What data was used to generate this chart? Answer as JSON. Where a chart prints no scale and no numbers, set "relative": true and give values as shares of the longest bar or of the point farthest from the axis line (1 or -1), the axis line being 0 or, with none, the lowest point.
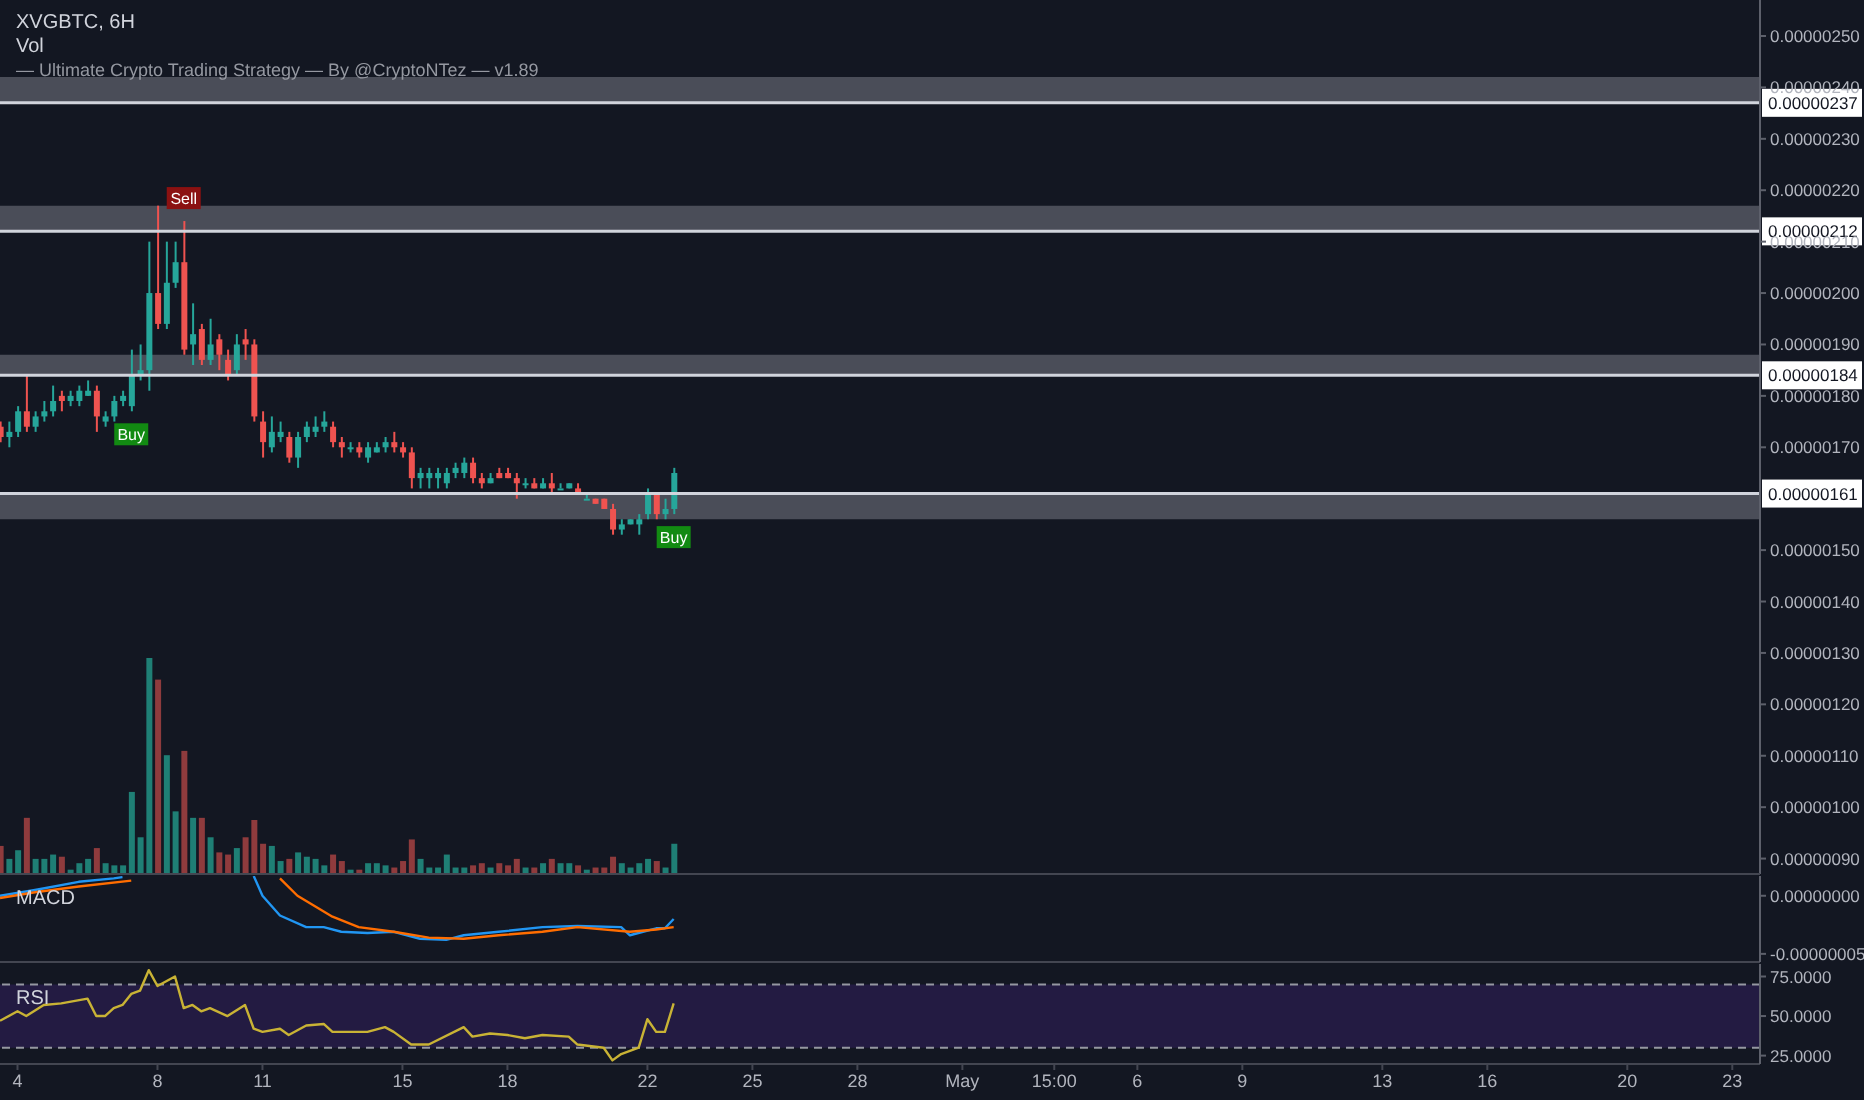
{
  "chart_data": [
    {
      "type": "candlestick",
      "title": "XVGBTC, 6H",
      "subtitle": "— Ultimate Crypto Trading Strategy — By @CryptoNTez — v1.89",
      "x": [
        "--04-03T12:00",
        "--04-03T18:00",
        "--04-04T00:00",
        "--04-04T06:00",
        "--04-04T12:00",
        "--04-04T18:00",
        "--04-05T00:00",
        "--04-05T06:00",
        "--04-05T12:00",
        "--04-05T18:00",
        "--04-06T00:00",
        "--04-06T06:00",
        "--04-06T12:00",
        "--04-06T18:00",
        "--04-07T00:00",
        "--04-07T06:00",
        "--04-07T12:00",
        "--04-07T18:00",
        "--04-08T00:00",
        "--04-08T06:00",
        "--04-08T12:00",
        "--04-08T18:00",
        "--04-09T00:00",
        "--04-09T06:00",
        "--04-09T12:00",
        "--04-09T18:00",
        "--04-10T00:00",
        "--04-10T06:00",
        "--04-10T12:00",
        "--04-10T18:00",
        "--04-11T00:00",
        "--04-11T06:00",
        "--04-11T12:00",
        "--04-11T18:00",
        "--04-12T00:00",
        "--04-12T06:00",
        "--04-12T12:00",
        "--04-12T18:00",
        "--04-13T00:00",
        "--04-13T06:00",
        "--04-13T12:00",
        "--04-13T18:00",
        "--04-14T00:00",
        "--04-14T06:00",
        "--04-14T12:00",
        "--04-14T18:00",
        "--04-15T00:00",
        "--04-15T06:00",
        "--04-15T12:00",
        "--04-15T18:00",
        "--04-16T00:00",
        "--04-16T06:00",
        "--04-16T12:00",
        "--04-16T18:00",
        "--04-17T00:00",
        "--04-17T06:00",
        "--04-17T12:00",
        "--04-17T18:00",
        "--04-18T00:00",
        "--04-18T06:00",
        "--04-18T12:00",
        "--04-18T18:00",
        "--04-19T00:00",
        "--04-19T06:00",
        "--04-19T12:00",
        "--04-19T18:00",
        "--04-20T00:00",
        "--04-20T06:00",
        "--04-20T12:00",
        "--04-20T18:00",
        "--04-21T00:00",
        "--04-21T06:00",
        "--04-21T12:00",
        "--04-21T18:00",
        "--04-22T00:00",
        "--04-22T06:00",
        "--04-22T12:00",
        "--04-22T18:00"
      ],
      "ohlc": [
        [
          1.74e-06,
          1.75e-06,
          1.71e-06,
          1.72e-06
        ],
        [
          1.72e-06,
          1.75e-06,
          1.7e-06,
          1.73e-06
        ],
        [
          1.73e-06,
          1.78e-06,
          1.72e-06,
          1.77e-06
        ],
        [
          1.77e-06,
          1.84e-06,
          1.73e-06,
          1.74e-06
        ],
        [
          1.74e-06,
          1.77e-06,
          1.73e-06,
          1.76e-06
        ],
        [
          1.76e-06,
          1.79e-06,
          1.75e-06,
          1.77e-06
        ],
        [
          1.77e-06,
          1.82e-06,
          1.76e-06,
          1.79e-06
        ],
        [
          1.8e-06,
          1.81e-06,
          1.77e-06,
          1.79e-06
        ],
        [
          1.79e-06,
          1.81e-06,
          1.78e-06,
          1.8e-06
        ],
        [
          1.79e-06,
          1.82e-06,
          1.78e-06,
          1.81e-06
        ],
        [
          1.8e-06,
          1.83e-06,
          1.8e-06,
          1.81e-06
        ],
        [
          1.81e-06,
          1.82e-06,
          1.73e-06,
          1.76e-06
        ],
        [
          1.75e-06,
          1.77e-06,
          1.74e-06,
          1.76e-06
        ],
        [
          1.76e-06,
          1.8e-06,
          1.75e-06,
          1.79e-06
        ],
        [
          1.79e-06,
          1.81e-06,
          1.78e-06,
          1.8e-06
        ],
        [
          1.78e-06,
          1.89e-06,
          1.77e-06,
          1.84e-06
        ],
        [
          1.84e-06,
          1.9e-06,
          1.83e-06,
          1.85e-06
        ],
        [
          1.85e-06,
          2.1e-06,
          1.81e-06,
          2e-06
        ],
        [
          2e-06,
          2.17e-06,
          1.93e-06,
          1.94e-06
        ],
        [
          1.94e-06,
          2.1e-06,
          1.93e-06,
          2.02e-06
        ],
        [
          2.02e-06,
          2.1e-06,
          2.01e-06,
          2.06e-06
        ],
        [
          2.06e-06,
          2.14e-06,
          1.88e-06,
          1.89e-06
        ],
        [
          1.9e-06,
          1.98e-06,
          1.86e-06,
          1.92e-06
        ],
        [
          1.93e-06,
          1.94e-06,
          1.86e-06,
          1.87e-06
        ],
        [
          1.87e-06,
          1.95e-06,
          1.86e-06,
          1.9e-06
        ],
        [
          1.91e-06,
          1.92e-06,
          1.85e-06,
          1.88e-06
        ],
        [
          1.87e-06,
          1.89e-06,
          1.83e-06,
          1.84e-06
        ],
        [
          1.85e-06,
          1.92e-06,
          1.84e-06,
          1.9e-06
        ],
        [
          1.91e-06,
          1.93e-06,
          1.87e-06,
          1.9e-06
        ],
        [
          1.9e-06,
          1.91e-06,
          1.75e-06,
          1.76e-06
        ],
        [
          1.75e-06,
          1.77e-06,
          1.68e-06,
          1.71e-06
        ],
        [
          1.7e-06,
          1.76e-06,
          1.69e-06,
          1.73e-06
        ],
        [
          1.72e-06,
          1.75e-06,
          1.71e-06,
          1.73e-06
        ],
        [
          1.72e-06,
          1.73e-06,
          1.67e-06,
          1.68e-06
        ],
        [
          1.68e-06,
          1.73e-06,
          1.66e-06,
          1.72e-06
        ],
        [
          1.72e-06,
          1.75e-06,
          1.71e-06,
          1.74e-06
        ],
        [
          1.73e-06,
          1.76e-06,
          1.72e-06,
          1.74e-06
        ],
        [
          1.74e-06,
          1.77e-06,
          1.73e-06,
          1.75e-06
        ],
        [
          1.74e-06,
          1.75e-06,
          1.7e-06,
          1.71e-06
        ],
        [
          1.71e-06,
          1.72e-06,
          1.68e-06,
          1.7e-06
        ],
        [
          1.7e-06,
          1.71e-06,
          1.69e-06,
          1.7e-06
        ],
        [
          1.7e-06,
          1.71e-06,
          1.68e-06,
          1.69e-06
        ],
        [
          1.68e-06,
          1.71e-06,
          1.67e-06,
          1.7e-06
        ],
        [
          1.69e-06,
          1.71e-06,
          1.69e-06,
          1.7e-06
        ],
        [
          1.7e-06,
          1.72e-06,
          1.69e-06,
          1.71e-06
        ],
        [
          1.71e-06,
          1.73e-06,
          1.69e-06,
          1.7e-06
        ],
        [
          1.7e-06,
          1.71e-06,
          1.68e-06,
          1.69e-06
        ],
        [
          1.69e-06,
          1.7e-06,
          1.62e-06,
          1.64e-06
        ],
        [
          1.64e-06,
          1.66e-06,
          1.62e-06,
          1.65e-06
        ],
        [
          1.64e-06,
          1.66e-06,
          1.62e-06,
          1.65e-06
        ],
        [
          1.64e-06,
          1.66e-06,
          1.62e-06,
          1.65e-06
        ],
        [
          1.63e-06,
          1.66e-06,
          1.62e-06,
          1.65e-06
        ],
        [
          1.65e-06,
          1.67e-06,
          1.64e-06,
          1.66e-06
        ],
        [
          1.65e-06,
          1.68e-06,
          1.64e-06,
          1.67e-06
        ],
        [
          1.67e-06,
          1.68e-06,
          1.63e-06,
          1.64e-06
        ],
        [
          1.64e-06,
          1.65e-06,
          1.62e-06,
          1.63e-06
        ],
        [
          1.63e-06,
          1.65e-06,
          1.63e-06,
          1.64e-06
        ],
        [
          1.65e-06,
          1.66e-06,
          1.64e-06,
          1.64e-06
        ],
        [
          1.65e-06,
          1.66e-06,
          1.64e-06,
          1.64e-06
        ],
        [
          1.64e-06,
          1.65e-06,
          1.6e-06,
          1.63e-06
        ],
        [
          1.63e-06,
          1.64e-06,
          1.62e-06,
          1.63e-06
        ],
        [
          1.63e-06,
          1.64e-06,
          1.62e-06,
          1.62e-06
        ],
        [
          1.62e-06,
          1.64e-06,
          1.62e-06,
          1.63e-06
        ],
        [
          1.63e-06,
          1.65e-06,
          1.61e-06,
          1.62e-06
        ],
        [
          1.62e-06,
          1.63e-06,
          1.62e-06,
          1.62e-06
        ],
        [
          1.62e-06,
          1.63e-06,
          1.62e-06,
          1.63e-06
        ],
        [
          1.62e-06,
          1.63e-06,
          1.61e-06,
          1.61e-06
        ],
        [
          1.6e-06,
          1.61e-06,
          1.6e-06,
          1.6e-06
        ],
        [
          1.6e-06,
          1.6e-06,
          1.59e-06,
          1.59e-06
        ],
        [
          1.6e-06,
          1.6e-06,
          1.58e-06,
          1.58e-06
        ],
        [
          1.58e-06,
          1.59e-06,
          1.53e-06,
          1.54e-06
        ],
        [
          1.54e-06,
          1.56e-06,
          1.53e-06,
          1.55e-06
        ],
        [
          1.55e-06,
          1.56e-06,
          1.55e-06,
          1.56e-06
        ],
        [
          1.55e-06,
          1.57e-06,
          1.53e-06,
          1.56e-06
        ],
        [
          1.57e-06,
          1.62e-06,
          1.56e-06,
          1.61e-06
        ],
        [
          1.61e-06,
          1.61e-06,
          1.56e-06,
          1.57e-06
        ],
        [
          1.57e-06,
          1.6e-06,
          1.56e-06,
          1.58e-06
        ],
        [
          1.58e-06,
          1.66e-06,
          1.57e-06,
          1.65e-06
        ]
      ],
      "colors": [
        "#ef5350",
        "#26a69a",
        "#26a69a",
        "#ef5350",
        "#26a69a",
        "#26a69a",
        "#26a69a",
        "#ef5350",
        "#26a69a",
        "#26a69a",
        "#26a69a",
        "#ef5350",
        "#26a69a",
        "#26a69a",
        "#26a69a",
        "#26a69a",
        "#26a69a",
        "#26a69a",
        "#ef5350",
        "#26a69a",
        "#26a69a",
        "#ef5350",
        "#26a69a",
        "#ef5350",
        "#26a69a",
        "#ef5350",
        "#ef5350",
        "#26a69a",
        "#ef5350",
        "#ef5350",
        "#ef5350",
        "#26a69a",
        "#26a69a",
        "#ef5350",
        "#26a69a",
        "#26a69a",
        "#26a69a",
        "#26a69a",
        "#ef5350",
        "#ef5350",
        "#26a69a",
        "#ef5350",
        "#26a69a",
        "#26a69a",
        "#26a69a",
        "#ef5350",
        "#ef5350",
        "#ef5350",
        "#26a69a",
        "#26a69a",
        "#26a69a",
        "#26a69a",
        "#26a69a",
        "#26a69a",
        "#ef5350",
        "#ef5350",
        "#26a69a",
        "#ef5350",
        "#ef5350",
        "#ef5350",
        "#26a69a",
        "#ef5350",
        "#26a69a",
        "#ef5350",
        "#26a69a",
        "#26a69a",
        "#ef5350",
        "#26a69a",
        "#ef5350",
        "#ef5350",
        "#ef5350",
        "#26a69a",
        "#26a69a",
        "#26a69a",
        "#26a69a",
        "#ef5350",
        "#26a69a",
        "#26a69a"
      ],
      "xlim": [
        "--04-03T12:00",
        "--05-23T19:00"
      ],
      "ylim": [
        8.7e-07,
        2.57e-06
      ],
      "yticks": [
        {
          "value": 9e-07,
          "label": "0.00000090"
        },
        {
          "value": 1e-06,
          "label": "0.00000100"
        },
        {
          "value": 1.1e-06,
          "label": "0.00000110"
        },
        {
          "value": 1.2e-06,
          "label": "0.00000120"
        },
        {
          "value": 1.3e-06,
          "label": "0.00000130"
        },
        {
          "value": 1.4e-06,
          "label": "0.00000140"
        },
        {
          "value": 1.5e-06,
          "label": "0.00000150"
        },
        {
          "value": 1.7e-06,
          "label": "0.00000170"
        },
        {
          "value": 1.8e-06,
          "label": "0.00000180"
        },
        {
          "value": 1.9e-06,
          "label": "0.00000190"
        },
        {
          "value": 2e-06,
          "label": "0.00000200"
        },
        {
          "value": 2.1e-06,
          "label": "0.00000210"
        },
        {
          "value": 2.2e-06,
          "label": "0.00000220"
        },
        {
          "value": 2.3e-06,
          "label": "0.00000230"
        },
        {
          "value": 2.4e-06,
          "label": "0.00000240"
        },
        {
          "value": 2.5e-06,
          "label": "0.00000250"
        }
      ],
      "ref_lines": [
        {
          "axis": "y",
          "value": 2.37e-06,
          "label": "0.00000237",
          "color": "#d1d4dc"
        },
        {
          "axis": "y",
          "value": 2.12e-06,
          "label": "0.00000212",
          "color": "#d1d4dc"
        },
        {
          "axis": "y",
          "value": 1.84e-06,
          "label": "0.00000184",
          "color": "#d1d4dc"
        },
        {
          "axis": "y",
          "value": 1.61e-06,
          "label": "0.00000161",
          "color": "#d1d4dc"
        }
      ],
      "bands": [
        {
          "axis": "y",
          "from": 2.37e-06,
          "to": 2.42e-06,
          "color": "#5d606b"
        },
        {
          "axis": "y",
          "from": 2.12e-06,
          "to": 2.17e-06,
          "color": "#5d606b"
        },
        {
          "axis": "y",
          "from": 1.84e-06,
          "to": 1.88e-06,
          "color": "#5d606b"
        },
        {
          "axis": "y",
          "from": 1.56e-06,
          "to": 1.61e-06,
          "color": "#5d606b"
        }
      ],
      "annotations": [
        {
          "text": "Sell",
          "x": "--04-08T18:00",
          "y": 2.14e-06
        },
        {
          "text": "Buy",
          "x": "--04-07T06:00",
          "y": 1.77e-06
        },
        {
          "text": "Buy",
          "x": "--04-22T18:00",
          "y": 1.57e-06
        }
      ],
      "tick_labels": "y"
    },
    {
      "type": "bar",
      "title": "Vol",
      "relative": true,
      "x": [
        "--04-03T12:00",
        "--04-03T18:00",
        "--04-04T00:00",
        "--04-04T06:00",
        "--04-04T12:00",
        "--04-04T18:00",
        "--04-05T00:00",
        "--04-05T06:00",
        "--04-05T12:00",
        "--04-05T18:00",
        "--04-06T00:00",
        "--04-06T06:00",
        "--04-06T12:00",
        "--04-06T18:00",
        "--04-07T00:00",
        "--04-07T06:00",
        "--04-07T12:00",
        "--04-07T18:00",
        "--04-08T00:00",
        "--04-08T06:00",
        "--04-08T12:00",
        "--04-08T18:00",
        "--04-09T00:00",
        "--04-09T06:00",
        "--04-09T12:00",
        "--04-09T18:00",
        "--04-10T00:00",
        "--04-10T06:00",
        "--04-10T12:00",
        "--04-10T18:00",
        "--04-11T00:00",
        "--04-11T06:00",
        "--04-11T12:00",
        "--04-11T18:00",
        "--04-12T00:00",
        "--04-12T06:00",
        "--04-12T12:00",
        "--04-12T18:00",
        "--04-13T00:00",
        "--04-13T06:00",
        "--04-13T12:00",
        "--04-13T18:00",
        "--04-14T00:00",
        "--04-14T06:00",
        "--04-14T12:00",
        "--04-14T18:00",
        "--04-15T00:00",
        "--04-15T06:00",
        "--04-15T12:00",
        "--04-15T18:00",
        "--04-16T00:00",
        "--04-16T06:00",
        "--04-16T12:00",
        "--04-16T18:00",
        "--04-17T00:00",
        "--04-17T06:00",
        "--04-17T12:00",
        "--04-17T18:00",
        "--04-18T00:00",
        "--04-18T06:00",
        "--04-18T12:00",
        "--04-18T18:00",
        "--04-19T00:00",
        "--04-19T06:00",
        "--04-19T12:00",
        "--04-19T18:00",
        "--04-20T00:00",
        "--04-20T06:00",
        "--04-20T12:00",
        "--04-20T18:00",
        "--04-21T00:00",
        "--04-21T06:00",
        "--04-21T12:00",
        "--04-21T18:00",
        "--04-22T00:00",
        "--04-22T06:00",
        "--04-22T12:00",
        "--04-22T18:00"
      ],
      "values": [
        0.13,
        0.07,
        0.11,
        0.26,
        0.07,
        0.07,
        0.09,
        0.08,
        0.02,
        0.05,
        0.07,
        0.12,
        0.05,
        0.04,
        0.04,
        0.38,
        0.17,
        1,
        0.9,
        0.55,
        0.29,
        0.57,
        0.26,
        0.26,
        0.17,
        0.1,
        0.09,
        0.12,
        0.17,
        0.25,
        0.14,
        0.13,
        0.06,
        0.07,
        0.1,
        0.08,
        0.07,
        0.04,
        0.09,
        0.06,
        0.02,
        0.02,
        0.05,
        0.05,
        0.04,
        0.03,
        0.06,
        0.16,
        0.07,
        0.03,
        0.03,
        0.09,
        0.03,
        0.03,
        0.04,
        0.05,
        0.03,
        0.05,
        0.04,
        0.07,
        0.03,
        0.03,
        0.05,
        0.07,
        0.05,
        0.05,
        0.04,
        0.02,
        0.03,
        0.03,
        0.08,
        0.05,
        0.03,
        0.05,
        0.07,
        0.06,
        0.03,
        0.14
      ],
      "colors": [
        "#8f3b3d",
        "#1f7f75",
        "#1f7f75",
        "#8f3b3d",
        "#1f7f75",
        "#1f7f75",
        "#1f7f75",
        "#8f3b3d",
        "#1f7f75",
        "#1f7f75",
        "#1f7f75",
        "#8f3b3d",
        "#1f7f75",
        "#1f7f75",
        "#1f7f75",
        "#1f7f75",
        "#1f7f75",
        "#1f7f75",
        "#8f3b3d",
        "#1f7f75",
        "#1f7f75",
        "#8f3b3d",
        "#1f7f75",
        "#8f3b3d",
        "#1f7f75",
        "#8f3b3d",
        "#8f3b3d",
        "#1f7f75",
        "#8f3b3d",
        "#8f3b3d",
        "#8f3b3d",
        "#1f7f75",
        "#1f7f75",
        "#8f3b3d",
        "#1f7f75",
        "#1f7f75",
        "#1f7f75",
        "#1f7f75",
        "#8f3b3d",
        "#8f3b3d",
        "#1f7f75",
        "#8f3b3d",
        "#1f7f75",
        "#1f7f75",
        "#1f7f75",
        "#8f3b3d",
        "#8f3b3d",
        "#8f3b3d",
        "#1f7f75",
        "#1f7f75",
        "#1f7f75",
        "#1f7f75",
        "#1f7f75",
        "#1f7f75",
        "#8f3b3d",
        "#8f3b3d",
        "#1f7f75",
        "#8f3b3d",
        "#8f3b3d",
        "#8f3b3d",
        "#1f7f75",
        "#8f3b3d",
        "#1f7f75",
        "#8f3b3d",
        "#1f7f75",
        "#1f7f75",
        "#8f3b3d",
        "#1f7f75",
        "#8f3b3d",
        "#8f3b3d",
        "#8f3b3d",
        "#1f7f75",
        "#1f7f75",
        "#1f7f75",
        "#1f7f75",
        "#8f3b3d",
        "#1f7f75",
        "#1f7f75"
      ],
      "xlim": [
        "--04-03T12:00",
        "--05-23T19:00"
      ],
      "tick_labels": false
    },
    {
      "type": "line",
      "title": "MACD",
      "xlim": [
        "--04-03T12:00",
        "--05-23T19:00"
      ],
      "ylim": [
        -5.7e-08,
        1.7e-08
      ],
      "yticks": [
        {
          "value": 0,
          "label": "0.00000000"
        },
        {
          "value": -5e-08,
          "label": "-0.00000005"
        }
      ],
      "series": [
        {
          "color": "#2196f3",
          "x": [
            "--04-03T12:00",
            "--04-04T12:00",
            "--04-05T18:00",
            "--04-06T18:00",
            "--04-07T00:00",
            "--04-08T12:00",
            "--04-10T18:00",
            "--04-11T00:00",
            "--04-11T12:00",
            "--04-12T06:00",
            "--04-12T18:00",
            "--04-13T06:00",
            "--04-14T00:00",
            "--04-14T18:00",
            "--04-15T12:00",
            "--04-16T06:00",
            "--04-16T18:00",
            "--04-17T18:00",
            "--04-19T00:00",
            "--04-20T00:00",
            "--04-21T06:00",
            "--04-21T12:00",
            "--04-22T06:00",
            "--04-22T12:00",
            "--04-22T18:00"
          ],
          "values": [
            0,
            5e-09,
            1.2e-08,
            1.5e-08,
            1.6e-08,
            null,
            1.7e-08,
            0,
            -1.7e-08,
            -2.7e-08,
            -2.7e-08,
            -3.1e-08,
            -3.2e-08,
            -3.1e-08,
            -3.7e-08,
            -3.8e-08,
            -3.4e-08,
            -3.1e-08,
            -2.7e-08,
            -2.6e-08,
            -2.7e-08,
            -3.4e-08,
            -2.8e-08,
            -2.8e-08,
            -2e-08
          ]
        },
        {
          "color": "#ff6d00",
          "x": [
            "--04-03T12:00",
            "--04-04T12:00",
            "--04-05T18:00",
            "--04-07T06:00",
            "--04-08T12:00",
            "--04-11T12:00",
            "--04-12T00:00",
            "--04-13T00:00",
            "--04-13T18:00",
            "--04-14T18:00",
            "--04-15T18:00",
            "--04-16T18:00",
            "--04-17T18:00",
            "--04-19T00:00",
            "--04-20T00:00",
            "--04-21T12:00",
            "--04-22T06:00",
            "--04-22T18:00"
          ],
          "values": [
            -2e-09,
            3e-09,
            8e-09,
            1.3e-08,
            null,
            1.5e-08,
            0,
            -1.8e-08,
            -2.7e-08,
            -3.1e-08,
            -3.6e-08,
            -3.7e-08,
            -3.4e-08,
            -3.1e-08,
            -2.7e-08,
            -3.1e-08,
            -2.9e-08,
            -2.7e-08
          ]
        }
      ],
      "marker": "none",
      "tick_labels": "y"
    },
    {
      "type": "line",
      "title": "RSI",
      "xlim": [
        "--04-03T12:00",
        "--05-23T19:00"
      ],
      "ylim": [
        19.7,
        82.9
      ],
      "yticks": [
        {
          "value": 25,
          "label": "25.0000"
        },
        {
          "value": 50,
          "label": "50.0000"
        },
        {
          "value": 75,
          "label": "75.0000"
        }
      ],
      "xticks": [
        {
          "value": "--04-04",
          "label": "4"
        },
        {
          "value": "--04-08",
          "label": "8"
        },
        {
          "value": "--04-11",
          "label": "11"
        },
        {
          "value": "--04-15",
          "label": "15"
        },
        {
          "value": "--04-18",
          "label": "18"
        },
        {
          "value": "--04-22",
          "label": "22"
        },
        {
          "value": "--04-25",
          "label": "25"
        },
        {
          "value": "--04-28",
          "label": "28"
        },
        {
          "value": "--05-01",
          "label": "May"
        },
        {
          "value": "--05-03T15:00",
          "label": "15:00"
        },
        {
          "value": "--05-06",
          "label": "6"
        },
        {
          "value": "--05-09",
          "label": "9"
        },
        {
          "value": "--05-13",
          "label": "13"
        },
        {
          "value": "--05-16",
          "label": "16"
        },
        {
          "value": "--05-20",
          "label": "20"
        },
        {
          "value": "--05-23",
          "label": "23"
        }
      ],
      "series": [
        {
          "color": "#c9b335",
          "x": [
            "--04-03T12:00",
            "--04-04T00:00",
            "--04-04T06:00",
            "--04-04T18:00",
            "--04-05T06:00",
            "--04-06T00:00",
            "--04-06T06:00",
            "--04-06T12:00",
            "--04-06T18:00",
            "--04-07T00:00",
            "--04-07T06:00",
            "--04-07T12:00",
            "--04-07T18:00",
            "--04-08T00:00",
            "--04-08T12:00",
            "--04-08T18:00",
            "--04-09T00:00",
            "--04-09T06:00",
            "--04-09T12:00",
            "--04-10T00:00",
            "--04-10T12:00",
            "--04-10T18:00",
            "--04-11T00:00",
            "--04-11T12:00",
            "--04-11T18:00",
            "--04-12T06:00",
            "--04-12T18:00",
            "--04-13T00:00",
            "--04-14T00:00",
            "--04-14T12:00",
            "--04-14T18:00",
            "--04-15T06:00",
            "--04-15T18:00",
            "--04-16T18:00",
            "--04-17T00:00",
            "--04-17T12:00",
            "--04-18T00:00",
            "--04-18T12:00",
            "--04-19T00:00",
            "--04-19T18:00",
            "--04-20T00:00",
            "--04-20T18:00",
            "--04-21T00:00",
            "--04-21T06:00",
            "--04-21T18:00",
            "--04-22T00:00",
            "--04-22T06:00",
            "--04-22T12:00",
            "--04-22T18:00"
          ],
          "values": [
            47,
            53,
            50,
            57,
            58,
            61,
            50,
            50,
            55,
            57,
            64,
            66,
            79,
            69,
            75,
            55,
            57,
            53,
            55,
            50,
            57,
            42,
            40,
            42,
            38,
            44,
            45,
            40,
            40,
            43,
            40,
            32,
            32,
            43,
            37,
            39,
            38,
            36,
            38,
            37,
            32,
            30,
            22,
            26,
            30,
            48,
            40,
            40,
            58
          ]
        }
      ],
      "ref_lines": [
        {
          "axis": "y",
          "value": 70,
          "color": "#9598a1",
          "line_style": "dashed"
        },
        {
          "axis": "y",
          "value": 30,
          "color": "#9598a1",
          "line_style": "dashed"
        }
      ],
      "bands": [
        {
          "axis": "y",
          "from": 30,
          "to": 70,
          "color": "#2a1d4d"
        }
      ],
      "marker": "none"
    }
  ]
}
